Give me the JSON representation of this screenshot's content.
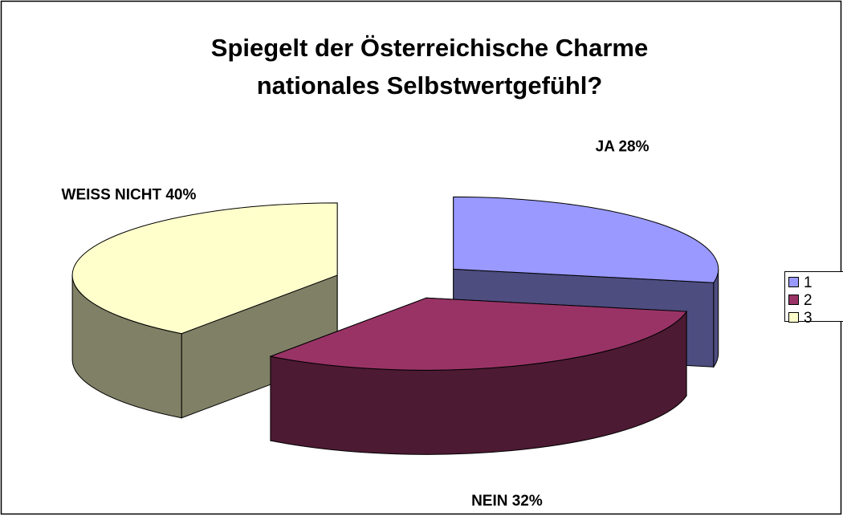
{
  "chart_data": {
    "type": "pie3d",
    "title": [
      "Spiegelt der Österreichische Charme",
      "nationales Selbstwertgefühl?"
    ],
    "categories": [
      "1",
      "2",
      "3"
    ],
    "values": [
      28,
      32,
      40
    ],
    "value_labels": [
      "JA 28%",
      "NEIN 32%",
      "WEISS NICHT 40%"
    ],
    "colors": [
      "#9999ff",
      "#993366",
      "#ffffcc"
    ],
    "side_colors": [
      "#4d4d80",
      "#4d1a33",
      "#808066"
    ],
    "exploded": true,
    "legend": "right"
  }
}
